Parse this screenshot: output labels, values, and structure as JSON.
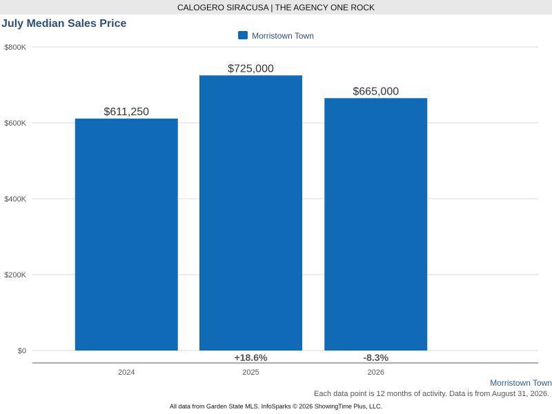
{
  "header": {
    "agent": "CALOGERO SIRACUSA | THE AGENCY ONE ROCK"
  },
  "chart_data": {
    "type": "bar",
    "title": "July Median Sales Price",
    "categories": [
      "2024",
      "2025",
      "2026"
    ],
    "series": [
      {
        "name": "Morristown Town",
        "values": [
          611250,
          725000,
          665000
        ],
        "color": "#106ab5"
      }
    ],
    "data_labels": [
      "$611,250",
      "$725,000",
      "$665,000"
    ],
    "change_labels": [
      "",
      "+18.6%",
      "-8.3%"
    ],
    "y_ticks": [
      0,
      200000,
      400000,
      600000,
      800000
    ],
    "y_tick_labels": [
      "$0",
      "$200K",
      "$400K",
      "$600K",
      "$800K"
    ],
    "ylim": [
      0,
      800000
    ],
    "grid": true,
    "legend_position": "top-center"
  },
  "footer": {
    "series_label": "Morristown Town",
    "note": "Each data point is 12 months of activity. Data is from August 31, 2026.",
    "source": "All data from Garden State MLS. InfoSparks © 2026 ShowingTime Plus, LLC."
  }
}
